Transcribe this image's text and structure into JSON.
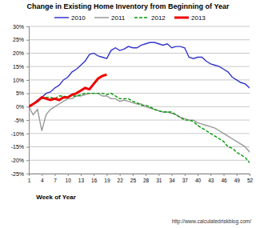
{
  "chart_data": {
    "type": "line",
    "title": "Change in Existing Home Inventory from Beginning of Year",
    "x_label": "Week of Year",
    "source": "http://www.calculatedriskblog.com/",
    "x": [
      1,
      2,
      3,
      4,
      5,
      6,
      7,
      8,
      9,
      10,
      11,
      12,
      13,
      14,
      15,
      16,
      17,
      18,
      19,
      20,
      21,
      22,
      23,
      24,
      25,
      26,
      27,
      28,
      29,
      30,
      31,
      32,
      33,
      34,
      35,
      36,
      37,
      38,
      39,
      40,
      41,
      42,
      43,
      44,
      45,
      46,
      47,
      48,
      49,
      50,
      51,
      52
    ],
    "series": [
      {
        "name": "2010",
        "color": "#3333cc",
        "line_style": "solid",
        "values": [
          0,
          1,
          2.5,
          3.5,
          5,
          5.5,
          7,
          8,
          10,
          11,
          13,
          14,
          15.5,
          17,
          19.5,
          20,
          19,
          18.5,
          18,
          21,
          22,
          21,
          21.5,
          22.5,
          22,
          22,
          23,
          23.5,
          24,
          24,
          23.5,
          23,
          23.5,
          22,
          22.5,
          22.5,
          22,
          18.5,
          18,
          18.5,
          18.5,
          17,
          16,
          15.5,
          15,
          14,
          13,
          11,
          10,
          9,
          8.5,
          7
        ]
      },
      {
        "name": "2011",
        "color": "#999999",
        "line_style": "solid",
        "values": [
          0,
          -3,
          -1,
          -9,
          -3,
          -1,
          0,
          1,
          2,
          3,
          3,
          4,
          4,
          4.5,
          5,
          5,
          5,
          4,
          4,
          3,
          3,
          2,
          2.5,
          2,
          1.5,
          1,
          1,
          0,
          -0.5,
          -1,
          -1.5,
          -2,
          -2,
          -2.5,
          -3,
          -4,
          -4.5,
          -5,
          -5,
          -6,
          -6.5,
          -7,
          -7.5,
          -8,
          -9,
          -10,
          -11,
          -12,
          -13,
          -14,
          -15,
          -17
        ]
      },
      {
        "name": "2012",
        "color": "#009900",
        "line_style": "dashed",
        "values": [
          0,
          1,
          2,
          3,
          3.5,
          3.5,
          3,
          4,
          4,
          3.5,
          4,
          4,
          4.5,
          5,
          5,
          5,
          5,
          5,
          4.5,
          5,
          4,
          3,
          3,
          3,
          2,
          1.5,
          0.5,
          0.5,
          0,
          -1,
          -1.5,
          -2,
          -2,
          -2,
          -3,
          -4,
          -5,
          -5,
          -5.5,
          -7,
          -8,
          -9,
          -10,
          -11,
          -12,
          -13,
          -15,
          -15.5,
          -17,
          -18,
          -19,
          -21
        ]
      },
      {
        "name": "2013",
        "color": "#ee0000",
        "line_style": "solid",
        "values": [
          0,
          1,
          2,
          3.5,
          3,
          2.5,
          3,
          2.5,
          3.5,
          3.5,
          4.5,
          5,
          6,
          7,
          6.5,
          8.5,
          10.5,
          11.5,
          12,
          null,
          null,
          null,
          null,
          null,
          null,
          null,
          null,
          null,
          null,
          null,
          null,
          null,
          null,
          null,
          null,
          null,
          null,
          null,
          null,
          null,
          null,
          null,
          null,
          null,
          null,
          null,
          null,
          null,
          null,
          null,
          null,
          null
        ]
      }
    ],
    "xlim": [
      1,
      52
    ],
    "xticks": [
      1,
      4,
      7,
      10,
      13,
      16,
      19,
      22,
      25,
      28,
      31,
      34,
      37,
      40,
      43,
      46,
      49,
      52
    ],
    "ylim": [
      -25,
      30
    ],
    "yticks": [
      {
        "value": -25,
        "label": "-25%"
      },
      {
        "value": -20,
        "label": "-20%"
      },
      {
        "value": -15,
        "label": "-15%"
      },
      {
        "value": -10,
        "label": "-10%"
      },
      {
        "value": -5,
        "label": "-5%"
      },
      {
        "value": 0,
        "label": "0%"
      },
      {
        "value": 5,
        "label": "5%"
      },
      {
        "value": 10,
        "label": "10%"
      },
      {
        "value": 15,
        "label": "15%"
      },
      {
        "value": 20,
        "label": "20%"
      },
      {
        "value": 25,
        "label": "25%"
      },
      {
        "value": 30,
        "label": "30%"
      }
    ],
    "grid": true,
    "legend": "top"
  }
}
